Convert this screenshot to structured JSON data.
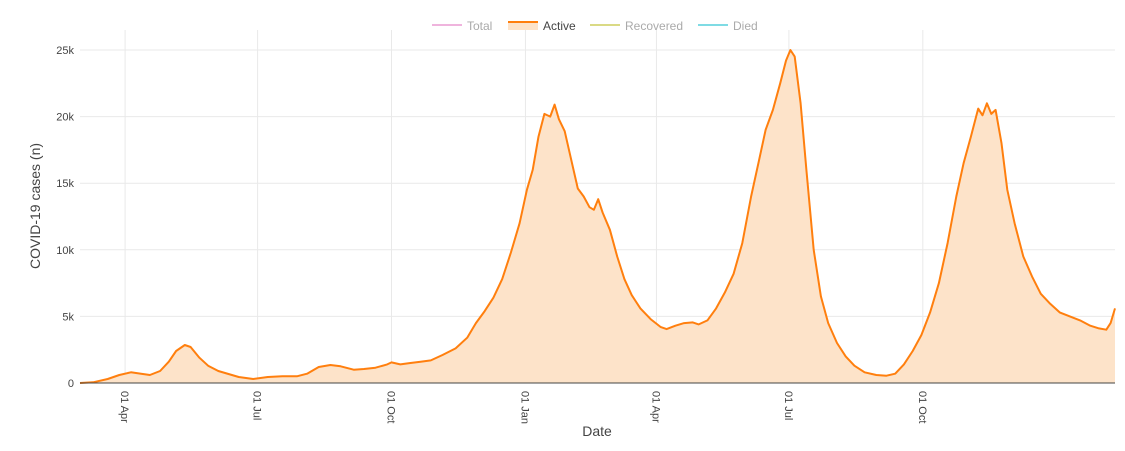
{
  "chart_data": {
    "type": "area",
    "title": "",
    "xlabel": "Date",
    "ylabel": "COVID-19 cases (n)",
    "ylim": [
      0,
      26500
    ],
    "grid": true,
    "legend_placement": "top-center",
    "x_tick_labels": [
      "01 Apr",
      "01 Jul",
      "01 Oct",
      "01 Jan",
      "01 Apr",
      "01 Jul",
      "01 Oct"
    ],
    "x_tick_dates": [
      "2020-04-01",
      "2020-07-01",
      "2020-10-01",
      "2021-01-01",
      "2021-04-01",
      "2021-07-01",
      "2021-10-01"
    ],
    "y_tick_labels": [
      "0",
      "5k",
      "10k",
      "15k",
      "20k",
      "25k"
    ],
    "y_tick_values": [
      0,
      5000,
      10000,
      15000,
      20000,
      25000
    ],
    "legend": [
      {
        "name": "Total",
        "color": "#e377c2",
        "visible": false
      },
      {
        "name": "Active",
        "color": "#ff7f0e",
        "visible": true
      },
      {
        "name": "Recovered",
        "color": "#bcbd22",
        "visible": false
      },
      {
        "name": "Died",
        "color": "#17becf",
        "visible": false
      }
    ],
    "fill_color": "#fde3c9",
    "series": [
      {
        "name": "Active",
        "color": "#ff7f0e",
        "points": [
          [
            "2020-03-01",
            0
          ],
          [
            "2020-03-10",
            50
          ],
          [
            "2020-03-20",
            300
          ],
          [
            "2020-03-28",
            600
          ],
          [
            "2020-04-05",
            800
          ],
          [
            "2020-04-12",
            700
          ],
          [
            "2020-04-18",
            600
          ],
          [
            "2020-04-25",
            900
          ],
          [
            "2020-05-01",
            1600
          ],
          [
            "2020-05-06",
            2400
          ],
          [
            "2020-05-12",
            2850
          ],
          [
            "2020-05-16",
            2700
          ],
          [
            "2020-05-22",
            1900
          ],
          [
            "2020-05-28",
            1300
          ],
          [
            "2020-06-04",
            900
          ],
          [
            "2020-06-18",
            450
          ],
          [
            "2020-06-28",
            300
          ],
          [
            "2020-07-08",
            450
          ],
          [
            "2020-07-18",
            500
          ],
          [
            "2020-07-28",
            500
          ],
          [
            "2020-08-04",
            700
          ],
          [
            "2020-08-12",
            1200
          ],
          [
            "2020-08-20",
            1350
          ],
          [
            "2020-08-27",
            1250
          ],
          [
            "2020-09-05",
            1000
          ],
          [
            "2020-09-12",
            1050
          ],
          [
            "2020-09-20",
            1150
          ],
          [
            "2020-09-28",
            1400
          ],
          [
            "2020-10-01",
            1550
          ],
          [
            "2020-10-07",
            1400
          ],
          [
            "2020-10-14",
            1500
          ],
          [
            "2020-10-21",
            1600
          ],
          [
            "2020-10-28",
            1700
          ],
          [
            "2020-11-05",
            2100
          ],
          [
            "2020-11-14",
            2600
          ],
          [
            "2020-11-22",
            3400
          ],
          [
            "2020-11-28",
            4500
          ],
          [
            "2020-12-04",
            5400
          ],
          [
            "2020-12-10",
            6400
          ],
          [
            "2020-12-16",
            7800
          ],
          [
            "2020-12-22",
            9800
          ],
          [
            "2020-12-28",
            12000
          ],
          [
            "2021-01-02",
            14500
          ],
          [
            "2021-01-06",
            16000
          ],
          [
            "2021-01-10",
            18500
          ],
          [
            "2021-01-14",
            20200
          ],
          [
            "2021-01-18",
            20000
          ],
          [
            "2021-01-21",
            20900
          ],
          [
            "2021-01-24",
            19800
          ],
          [
            "2021-01-28",
            18900
          ],
          [
            "2021-02-02",
            16500
          ],
          [
            "2021-02-06",
            14600
          ],
          [
            "2021-02-10",
            14000
          ],
          [
            "2021-02-14",
            13200
          ],
          [
            "2021-02-17",
            13000
          ],
          [
            "2021-02-20",
            13800
          ],
          [
            "2021-02-23",
            12800
          ],
          [
            "2021-02-28",
            11500
          ],
          [
            "2021-03-05",
            9500
          ],
          [
            "2021-03-10",
            7800
          ],
          [
            "2021-03-15",
            6600
          ],
          [
            "2021-03-21",
            5600
          ],
          [
            "2021-03-28",
            4800
          ],
          [
            "2021-04-04",
            4200
          ],
          [
            "2021-04-08",
            4050
          ],
          [
            "2021-04-14",
            4300
          ],
          [
            "2021-04-20",
            4500
          ],
          [
            "2021-04-26",
            4550
          ],
          [
            "2021-04-30",
            4400
          ],
          [
            "2021-05-06",
            4700
          ],
          [
            "2021-05-12",
            5600
          ],
          [
            "2021-05-18",
            6800
          ],
          [
            "2021-05-24",
            8200
          ],
          [
            "2021-05-30",
            10500
          ],
          [
            "2021-06-05",
            14000
          ],
          [
            "2021-06-10",
            16500
          ],
          [
            "2021-06-15",
            19000
          ],
          [
            "2021-06-20",
            20500
          ],
          [
            "2021-06-25",
            22500
          ],
          [
            "2021-06-29",
            24200
          ],
          [
            "2021-07-02",
            25000
          ],
          [
            "2021-07-05",
            24500
          ],
          [
            "2021-07-09",
            21000
          ],
          [
            "2021-07-13",
            16000
          ],
          [
            "2021-07-18",
            10000
          ],
          [
            "2021-07-23",
            6500
          ],
          [
            "2021-07-28",
            4500
          ],
          [
            "2021-08-03",
            3000
          ],
          [
            "2021-08-09",
            2000
          ],
          [
            "2021-08-15",
            1300
          ],
          [
            "2021-08-22",
            800
          ],
          [
            "2021-08-30",
            600
          ],
          [
            "2021-09-06",
            550
          ],
          [
            "2021-09-12",
            700
          ],
          [
            "2021-09-18",
            1400
          ],
          [
            "2021-09-24",
            2400
          ],
          [
            "2021-09-30",
            3600
          ],
          [
            "2021-10-06",
            5300
          ],
          [
            "2021-10-12",
            7500
          ],
          [
            "2021-10-18",
            10500
          ],
          [
            "2021-10-24",
            14000
          ],
          [
            "2021-10-29",
            16500
          ],
          [
            "2021-11-03",
            18500
          ],
          [
            "2021-11-08",
            20600
          ],
          [
            "2021-11-11",
            20100
          ],
          [
            "2021-11-14",
            21000
          ],
          [
            "2021-11-17",
            20200
          ],
          [
            "2021-11-20",
            20500
          ],
          [
            "2021-11-24",
            18000
          ],
          [
            "2021-11-28",
            14500
          ],
          [
            "2021-12-03",
            12000
          ],
          [
            "2021-12-09",
            9500
          ],
          [
            "2021-12-15",
            8000
          ],
          [
            "2021-12-21",
            6700
          ],
          [
            "2021-12-27",
            6000
          ],
          [
            "2022-01-03",
            5300
          ],
          [
            "2022-01-10",
            5000
          ],
          [
            "2022-01-17",
            4700
          ],
          [
            "2022-01-24",
            4300
          ],
          [
            "2022-01-30",
            4100
          ],
          [
            "2022-02-04",
            4000
          ],
          [
            "2022-02-07",
            4500
          ],
          [
            "2022-02-10",
            5600
          ]
        ]
      }
    ]
  }
}
